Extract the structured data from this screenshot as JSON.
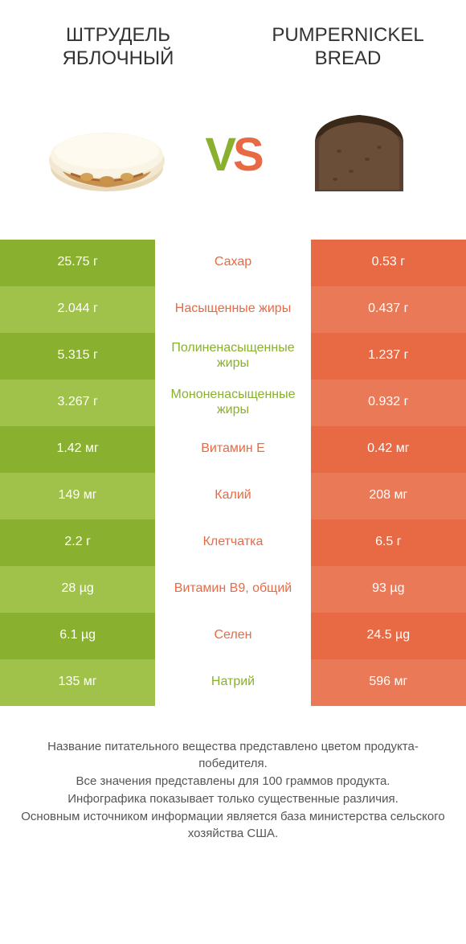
{
  "titles": {
    "left": "Штрудель яблочный",
    "right": "Pumpernickel bread"
  },
  "vs": {
    "v": "V",
    "s": "S"
  },
  "colors": {
    "green": "#8ab02f",
    "green_alt": "#a0c24a",
    "orange": "#e86a44",
    "orange_alt": "#ea7a57",
    "text": "#333333",
    "footer_text": "#555555",
    "white": "#ffffff"
  },
  "rows": [
    {
      "left": "25.75 г",
      "name": "Сахар",
      "right": "0.53 г",
      "winner": "left"
    },
    {
      "left": "2.044 г",
      "name": "Насыщенные жиры",
      "right": "0.437 г",
      "winner": "left"
    },
    {
      "left": "5.315 г",
      "name": "Полиненасыщенные жиры",
      "right": "1.237 г",
      "winner": "right"
    },
    {
      "left": "3.267 г",
      "name": "Мононенасыщенные жиры",
      "right": "0.932 г",
      "winner": "right"
    },
    {
      "left": "1.42 мг",
      "name": "Витамин E",
      "right": "0.42 мг",
      "winner": "left"
    },
    {
      "left": "149 мг",
      "name": "Калий",
      "right": "208 мг",
      "winner": "left"
    },
    {
      "left": "2.2 г",
      "name": "Клетчатка",
      "right": "6.5 г",
      "winner": "left"
    },
    {
      "left": "28 µg",
      "name": "Витамин B9, общий",
      "right": "93 µg",
      "winner": "left"
    },
    {
      "left": "6.1 µg",
      "name": "Селен",
      "right": "24.5 µg",
      "winner": "left"
    },
    {
      "left": "135 мг",
      "name": "Натрий",
      "right": "596 мг",
      "winner": "right"
    }
  ],
  "footer": "Название питательного вещества представлено цветом продукта-победителя.\nВсе значения представлены для 100 граммов продукта.\nИнфографика показывает только существенные различия.\nОсновным источником информации является база министерства сельского хозяйства США."
}
